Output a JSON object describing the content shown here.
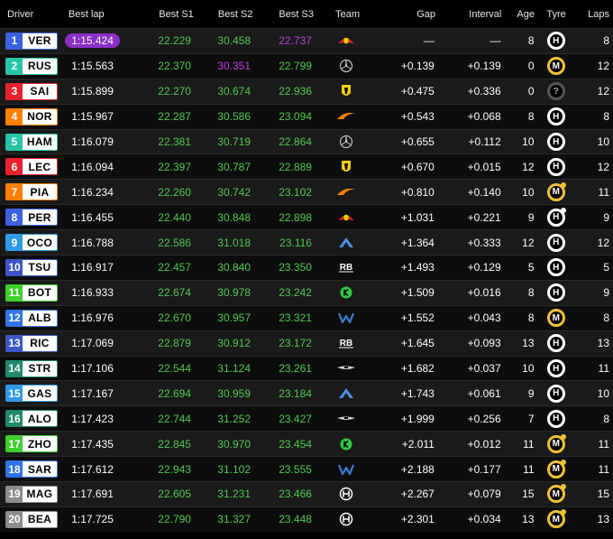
{
  "headers": {
    "driver": "Driver",
    "best_lap": "Best lap",
    "s1": "Best S1",
    "s2": "Best S2",
    "s3": "Best S3",
    "team": "Team",
    "gap": "Gap",
    "interval": "Interval",
    "age": "Age",
    "tyre": "Tyre",
    "laps": "Laps"
  },
  "teams": {
    "redbull": {
      "icon": "red-bull-logo-icon",
      "color": "#e8222e"
    },
    "mercedes": {
      "icon": "mercedes-logo-icon",
      "color": "#c0c0c0"
    },
    "ferrari": {
      "icon": "ferrari-logo-icon",
      "color": "#f5d100"
    },
    "mclaren": {
      "icon": "mclaren-logo-icon",
      "color": "#ff8000"
    },
    "alpine": {
      "icon": "alpine-logo-icon",
      "color": "#4a90e2"
    },
    "rb": {
      "icon": "rb-logo-icon",
      "color": "#ffffff"
    },
    "sauber": {
      "icon": "kick-sauber-logo-icon",
      "color": "#2ecc40"
    },
    "williams": {
      "icon": "williams-logo-icon",
      "color": "#3a7bd5"
    },
    "aston": {
      "icon": "aston-martin-logo-icon",
      "color": "#cccccc"
    },
    "haas": {
      "icon": "haas-logo-icon",
      "color": "#ffffff"
    }
  },
  "rows": [
    {
      "pos": "1",
      "code": "VER",
      "color": "#3b62e0",
      "lap": "1:15.424",
      "lap_purple": true,
      "s1": "22.229",
      "s1c": "green",
      "s2": "30.458",
      "s2c": "green",
      "s3": "22.737",
      "s3c": "purple",
      "team": "redbull",
      "gap": "—",
      "interval": "—",
      "age": "8",
      "tyre": "H",
      "tyre_new": false,
      "laps": "8"
    },
    {
      "pos": "2",
      "code": "RUS",
      "color": "#27c4a8",
      "lap": "1:15.563",
      "lap_purple": false,
      "s1": "22.370",
      "s1c": "green",
      "s2": "30.351",
      "s2c": "purple",
      "s3": "22.799",
      "s3c": "green",
      "team": "mercedes",
      "gap": "+0.139",
      "interval": "+0.139",
      "age": "0",
      "tyre": "M",
      "tyre_new": false,
      "laps": "12"
    },
    {
      "pos": "3",
      "code": "SAI",
      "color": "#e8222e",
      "lap": "1:15.899",
      "lap_purple": false,
      "s1": "22.270",
      "s1c": "green",
      "s2": "30.674",
      "s2c": "green",
      "s3": "22.936",
      "s3c": "green",
      "team": "ferrari",
      "gap": "+0.475",
      "interval": "+0.336",
      "age": "0",
      "tyre": "?",
      "tyre_new": false,
      "laps": "12"
    },
    {
      "pos": "4",
      "code": "NOR",
      "color": "#ff8000",
      "lap": "1:15.967",
      "lap_purple": false,
      "s1": "22.287",
      "s1c": "green",
      "s2": "30.586",
      "s2c": "green",
      "s3": "23.094",
      "s3c": "green",
      "team": "mclaren",
      "gap": "+0.543",
      "interval": "+0.068",
      "age": "8",
      "tyre": "H",
      "tyre_new": false,
      "laps": "8"
    },
    {
      "pos": "5",
      "code": "HAM",
      "color": "#27c4a8",
      "lap": "1:16.079",
      "lap_purple": false,
      "s1": "22.381",
      "s1c": "green",
      "s2": "30.719",
      "s2c": "green",
      "s3": "22.864",
      "s3c": "green",
      "team": "mercedes",
      "gap": "+0.655",
      "interval": "+0.112",
      "age": "10",
      "tyre": "H",
      "tyre_new": false,
      "laps": "10"
    },
    {
      "pos": "6",
      "code": "LEC",
      "color": "#e8222e",
      "lap": "1:16.094",
      "lap_purple": false,
      "s1": "22.397",
      "s1c": "green",
      "s2": "30.787",
      "s2c": "green",
      "s3": "22.889",
      "s3c": "green",
      "team": "ferrari",
      "gap": "+0.670",
      "interval": "+0.015",
      "age": "12",
      "tyre": "H",
      "tyre_new": false,
      "laps": "12"
    },
    {
      "pos": "7",
      "code": "PIA",
      "color": "#ff8000",
      "lap": "1:16.234",
      "lap_purple": false,
      "s1": "22.260",
      "s1c": "green",
      "s2": "30.742",
      "s2c": "green",
      "s3": "23.102",
      "s3c": "green",
      "team": "mclaren",
      "gap": "+0.810",
      "interval": "+0.140",
      "age": "10",
      "tyre": "M",
      "tyre_new": true,
      "laps": "11"
    },
    {
      "pos": "8",
      "code": "PER",
      "color": "#3b62e0",
      "lap": "1:16.455",
      "lap_purple": false,
      "s1": "22.440",
      "s1c": "green",
      "s2": "30.848",
      "s2c": "green",
      "s3": "22.898",
      "s3c": "green",
      "team": "redbull",
      "gap": "+1.031",
      "interval": "+0.221",
      "age": "9",
      "tyre": "H",
      "tyre_new": true,
      "laps": "9"
    },
    {
      "pos": "9",
      "code": "OCO",
      "color": "#2f9be8",
      "lap": "1:16.788",
      "lap_purple": false,
      "s1": "22.586",
      "s1c": "green",
      "s2": "31.018",
      "s2c": "green",
      "s3": "23.116",
      "s3c": "green",
      "team": "alpine",
      "gap": "+1.364",
      "interval": "+0.333",
      "age": "12",
      "tyre": "H",
      "tyre_new": false,
      "laps": "12"
    },
    {
      "pos": "10",
      "code": "TSU",
      "color": "#3b56c8",
      "lap": "1:16.917",
      "lap_purple": false,
      "s1": "22.457",
      "s1c": "green",
      "s2": "30.840",
      "s2c": "green",
      "s3": "23.350",
      "s3c": "green",
      "team": "rb",
      "gap": "+1.493",
      "interval": "+0.129",
      "age": "5",
      "tyre": "H",
      "tyre_new": false,
      "laps": "5"
    },
    {
      "pos": "11",
      "code": "BOT",
      "color": "#3ecf2c",
      "lap": "1:16.933",
      "lap_purple": false,
      "s1": "22.674",
      "s1c": "green",
      "s2": "30.978",
      "s2c": "green",
      "s3": "23.242",
      "s3c": "green",
      "team": "sauber",
      "gap": "+1.509",
      "interval": "+0.016",
      "age": "8",
      "tyre": "H",
      "tyre_new": false,
      "laps": "9"
    },
    {
      "pos": "12",
      "code": "ALB",
      "color": "#2f74e8",
      "lap": "1:16.976",
      "lap_purple": false,
      "s1": "22.670",
      "s1c": "green",
      "s2": "30.957",
      "s2c": "green",
      "s3": "23.321",
      "s3c": "green",
      "team": "williams",
      "gap": "+1.552",
      "interval": "+0.043",
      "age": "8",
      "tyre": "M",
      "tyre_new": false,
      "laps": "8"
    },
    {
      "pos": "13",
      "code": "RIC",
      "color": "#3b56c8",
      "lap": "1:17.069",
      "lap_purple": false,
      "s1": "22.879",
      "s1c": "green",
      "s2": "30.912",
      "s2c": "green",
      "s3": "23.172",
      "s3c": "green",
      "team": "rb",
      "gap": "+1.645",
      "interval": "+0.093",
      "age": "13",
      "tyre": "H",
      "tyre_new": false,
      "laps": "13"
    },
    {
      "pos": "14",
      "code": "STR",
      "color": "#1f8a6e",
      "lap": "1:17.106",
      "lap_purple": false,
      "s1": "22.544",
      "s1c": "green",
      "s2": "31.124",
      "s2c": "green",
      "s3": "23.261",
      "s3c": "green",
      "team": "aston",
      "gap": "+1.682",
      "interval": "+0.037",
      "age": "10",
      "tyre": "H",
      "tyre_new": false,
      "laps": "11"
    },
    {
      "pos": "15",
      "code": "GAS",
      "color": "#2f9be8",
      "lap": "1:17.167",
      "lap_purple": false,
      "s1": "22.694",
      "s1c": "green",
      "s2": "30.959",
      "s2c": "green",
      "s3": "23.184",
      "s3c": "green",
      "team": "alpine",
      "gap": "+1.743",
      "interval": "+0.061",
      "age": "9",
      "tyre": "H",
      "tyre_new": false,
      "laps": "10"
    },
    {
      "pos": "16",
      "code": "ALO",
      "color": "#1f8a6e",
      "lap": "1:17.423",
      "lap_purple": false,
      "s1": "22.744",
      "s1c": "green",
      "s2": "31.252",
      "s2c": "green",
      "s3": "23.427",
      "s3c": "green",
      "team": "aston",
      "gap": "+1.999",
      "interval": "+0.256",
      "age": "7",
      "tyre": "H",
      "tyre_new": false,
      "laps": "8"
    },
    {
      "pos": "17",
      "code": "ZHO",
      "color": "#3ecf2c",
      "lap": "1:17.435",
      "lap_purple": false,
      "s1": "22.845",
      "s1c": "green",
      "s2": "30.970",
      "s2c": "green",
      "s3": "23.454",
      "s3c": "green",
      "team": "sauber",
      "gap": "+2.011",
      "interval": "+0.012",
      "age": "11",
      "tyre": "M",
      "tyre_new": true,
      "laps": "11"
    },
    {
      "pos": "18",
      "code": "SAR",
      "color": "#2f74e8",
      "lap": "1:17.612",
      "lap_purple": false,
      "s1": "22.943",
      "s1c": "green",
      "s2": "31.102",
      "s2c": "green",
      "s3": "23.555",
      "s3c": "green",
      "team": "williams",
      "gap": "+2.188",
      "interval": "+0.177",
      "age": "11",
      "tyre": "M",
      "tyre_new": true,
      "laps": "11"
    },
    {
      "pos": "19",
      "code": "MAG",
      "color": "#8c8c8c",
      "lap": "1:17.691",
      "lap_purple": false,
      "s1": "22.605",
      "s1c": "green",
      "s2": "31.231",
      "s2c": "green",
      "s3": "23.466",
      "s3c": "green",
      "team": "haas",
      "gap": "+2.267",
      "interval": "+0.079",
      "age": "15",
      "tyre": "M",
      "tyre_new": true,
      "laps": "15"
    },
    {
      "pos": "20",
      "code": "BEA",
      "color": "#8c8c8c",
      "lap": "1:17.725",
      "lap_purple": false,
      "s1": "22.790",
      "s1c": "green",
      "s2": "31.327",
      "s2c": "green",
      "s3": "23.448",
      "s3c": "green",
      "team": "haas",
      "gap": "+2.301",
      "interval": "+0.034",
      "age": "13",
      "tyre": "M",
      "tyre_new": true,
      "laps": "13"
    }
  ]
}
